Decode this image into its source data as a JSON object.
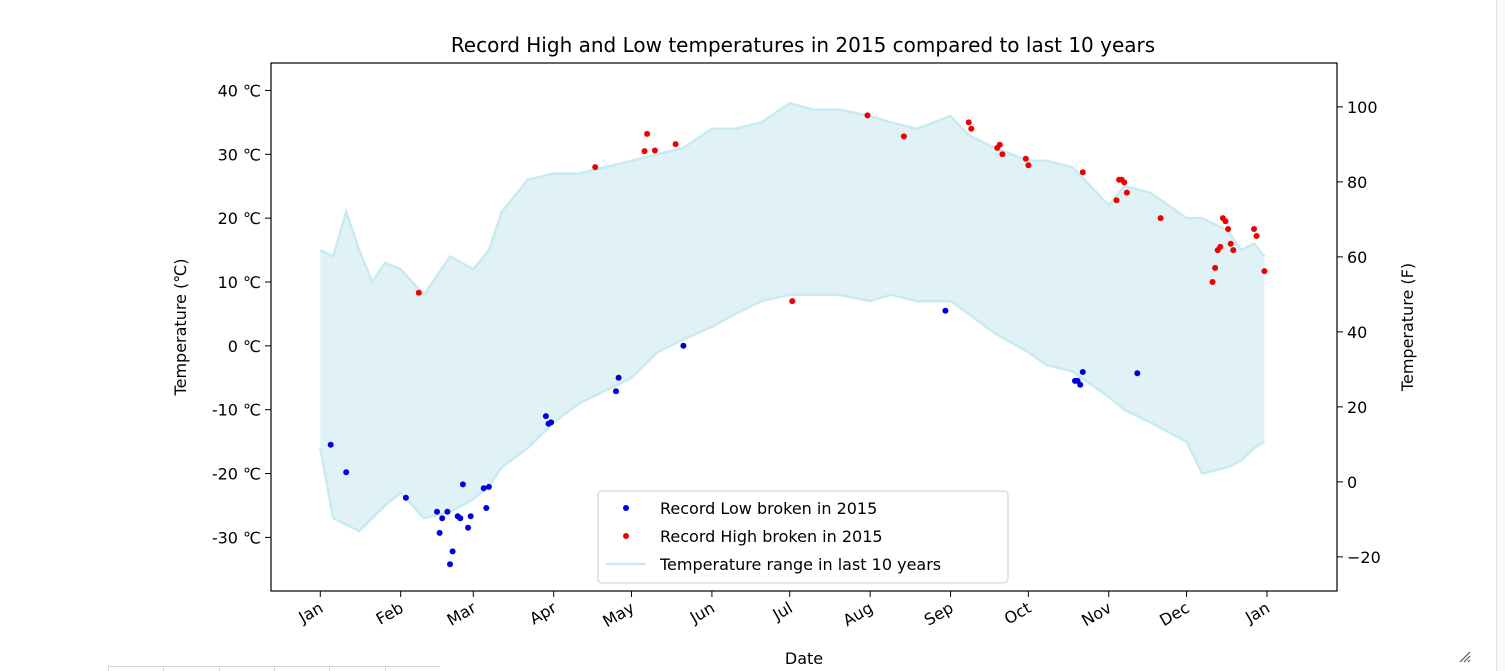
{
  "chart_data": {
    "type": "scatter",
    "title": "Record High and Low temperatures in 2015 compared to last 10 years",
    "xlabel": "Date",
    "ylabel": "Temperature (℃)",
    "ylabel_right": "Temperature (F)",
    "ylim": [
      -38.4,
      44.3
    ],
    "ylim_right": [
      -29.1,
      111.7
    ],
    "xlim_day": [
      -19,
      392
    ],
    "x_ticks": [
      {
        "label": "Jan",
        "day": 0
      },
      {
        "label": "Feb",
        "day": 31
      },
      {
        "label": "Mar",
        "day": 59
      },
      {
        "label": "Apr",
        "day": 90
      },
      {
        "label": "May",
        "day": 120
      },
      {
        "label": "Jun",
        "day": 151
      },
      {
        "label": "Jul",
        "day": 181
      },
      {
        "label": "Aug",
        "day": 212
      },
      {
        "label": "Sep",
        "day": 243
      },
      {
        "label": "Oct",
        "day": 273
      },
      {
        "label": "Nov",
        "day": 304
      },
      {
        "label": "Dec",
        "day": 334
      },
      {
        "label": "Jan",
        "day": 365
      }
    ],
    "y_ticks_left": [
      {
        "label": "-30 ℃",
        "v": -30
      },
      {
        "label": "-20 ℃",
        "v": -20
      },
      {
        "label": "-10 ℃",
        "v": -10
      },
      {
        "label": "0 ℃",
        "v": 0
      },
      {
        "label": "10 ℃",
        "v": 10
      },
      {
        "label": "20 ℃",
        "v": 20
      },
      {
        "label": "30 ℃",
        "v": 30
      },
      {
        "label": "40 ℃",
        "v": 40
      }
    ],
    "y_ticks_right": [
      {
        "label": "−20",
        "v": -20
      },
      {
        "label": "0",
        "v": 0
      },
      {
        "label": "20",
        "v": 20
      },
      {
        "label": "40",
        "v": 40
      },
      {
        "label": "60",
        "v": 60
      },
      {
        "label": "80",
        "v": 80
      },
      {
        "label": "100",
        "v": 100
      }
    ],
    "legend_position": "lower-center",
    "legend": [
      {
        "label": "Record Low broken in 2015",
        "kind": "dot",
        "color": "#0000dd"
      },
      {
        "label": "Record High broken in 2015",
        "kind": "dot",
        "color": "#ee0000"
      },
      {
        "label": "Temperature range in last 10 years",
        "kind": "line",
        "color": "#c6ebf2"
      }
    ],
    "colors": {
      "band_fill": "#e1f2f6",
      "band_edge": "#c8ebf2",
      "low": "#0000dd",
      "high": "#ee0000"
    },
    "range_band": {
      "days": [
        0,
        5,
        10,
        15,
        20,
        25,
        31,
        40,
        50,
        59,
        65,
        70,
        80,
        90,
        100,
        110,
        120,
        130,
        140,
        151,
        160,
        170,
        181,
        190,
        200,
        212,
        220,
        230,
        243,
        250,
        260,
        273,
        280,
        290,
        304,
        310,
        320,
        334,
        340,
        350,
        355,
        360,
        364
      ],
      "high_c": [
        15,
        14,
        21,
        15,
        10,
        13,
        12,
        8,
        14,
        12,
        15,
        21,
        26,
        27,
        27,
        28,
        29,
        30,
        31,
        34,
        34,
        35,
        38,
        37,
        37,
        36,
        35,
        34,
        36,
        33,
        31,
        29,
        29,
        28,
        22,
        25,
        24,
        20,
        20,
        18,
        15,
        16,
        14
      ],
      "low_c": [
        -16,
        -27,
        -28,
        -29,
        -27,
        -25,
        -23,
        -27,
        -26,
        -24,
        -22,
        -19,
        -16,
        -12,
        -9,
        -7,
        -5,
        -1,
        1,
        3,
        5,
        7,
        8,
        8,
        8,
        7,
        8,
        7,
        7,
        5,
        2,
        -1,
        -3,
        -4,
        -8,
        -10,
        -12,
        -15,
        -20,
        -19,
        -18,
        -16,
        -15
      ]
    },
    "record_lows": [
      {
        "day": 4,
        "c": -15.5
      },
      {
        "day": 10,
        "c": -19.8
      },
      {
        "day": 33,
        "c": -23.8
      },
      {
        "day": 45,
        "c": -26
      },
      {
        "day": 46,
        "c": -29.3
      },
      {
        "day": 47,
        "c": -27
      },
      {
        "day": 49,
        "c": -26
      },
      {
        "day": 50,
        "c": -34.2
      },
      {
        "day": 51,
        "c": -32.2
      },
      {
        "day": 53,
        "c": -26.7
      },
      {
        "day": 54,
        "c": -27
      },
      {
        "day": 55,
        "c": -21.7
      },
      {
        "day": 57,
        "c": -28.5
      },
      {
        "day": 58,
        "c": -26.7
      },
      {
        "day": 63,
        "c": -22.3
      },
      {
        "day": 64,
        "c": -25.4
      },
      {
        "day": 65,
        "c": -22.1
      },
      {
        "day": 87,
        "c": -11.0
      },
      {
        "day": 88,
        "c": -12.2
      },
      {
        "day": 89,
        "c": -12.0
      },
      {
        "day": 114,
        "c": -7.1
      },
      {
        "day": 115,
        "c": -5.0
      },
      {
        "day": 140,
        "c": 0.0
      },
      {
        "day": 241,
        "c": 5.5
      },
      {
        "day": 291,
        "c": -5.5
      },
      {
        "day": 292,
        "c": -5.5
      },
      {
        "day": 293,
        "c": -6.1
      },
      {
        "day": 294,
        "c": -4.1
      },
      {
        "day": 315,
        "c": -4.3
      }
    ],
    "record_highs": [
      {
        "day": 38,
        "c": 8.3
      },
      {
        "day": 106,
        "c": 28
      },
      {
        "day": 125,
        "c": 30.5
      },
      {
        "day": 126,
        "c": 33.2
      },
      {
        "day": 129,
        "c": 30.6
      },
      {
        "day": 137,
        "c": 31.6
      },
      {
        "day": 182,
        "c": 7
      },
      {
        "day": 211,
        "c": 36.1
      },
      {
        "day": 225,
        "c": 32.8
      },
      {
        "day": 250,
        "c": 35
      },
      {
        "day": 251,
        "c": 34
      },
      {
        "day": 261,
        "c": 31
      },
      {
        "day": 262,
        "c": 31.5
      },
      {
        "day": 263,
        "c": 30
      },
      {
        "day": 272,
        "c": 29.3
      },
      {
        "day": 273,
        "c": 28.3
      },
      {
        "day": 294,
        "c": 27.2
      },
      {
        "day": 307,
        "c": 22.8
      },
      {
        "day": 308,
        "c": 26
      },
      {
        "day": 309,
        "c": 26
      },
      {
        "day": 310,
        "c": 25.6
      },
      {
        "day": 311,
        "c": 24
      },
      {
        "day": 324,
        "c": 20
      },
      {
        "day": 344,
        "c": 10
      },
      {
        "day": 345,
        "c": 12.2
      },
      {
        "day": 346,
        "c": 15
      },
      {
        "day": 347,
        "c": 15.5
      },
      {
        "day": 348,
        "c": 20
      },
      {
        "day": 349,
        "c": 19.5
      },
      {
        "day": 350,
        "c": 18.3
      },
      {
        "day": 351,
        "c": 16
      },
      {
        "day": 352,
        "c": 15
      },
      {
        "day": 360,
        "c": 18.3
      },
      {
        "day": 361,
        "c": 17.2
      },
      {
        "day": 364,
        "c": 11.7
      }
    ]
  }
}
